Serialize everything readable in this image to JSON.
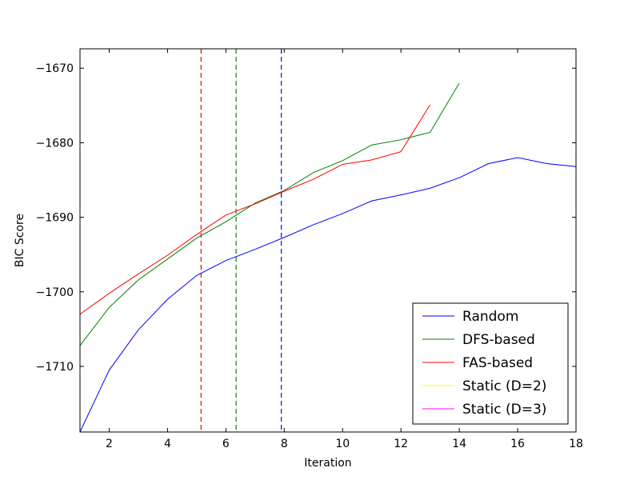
{
  "chart_data": {
    "type": "line",
    "title": "",
    "xlabel": "Iteration",
    "ylabel": "BIC Score",
    "xlim": [
      1,
      18
    ],
    "ylim": [
      -1718.8,
      -1667.4
    ],
    "xticks": [
      2,
      4,
      6,
      8,
      10,
      12,
      14,
      16,
      18
    ],
    "yticks": [
      -1670,
      -1680,
      -1690,
      -1700,
      -1710
    ],
    "grid": false,
    "legend_position": "bottom-right",
    "series": [
      {
        "name": "Random",
        "color": "#0000ff",
        "x": [
          1,
          2,
          3,
          4,
          5,
          6,
          7,
          8,
          9,
          10,
          11,
          12,
          13,
          14,
          15,
          16,
          17,
          18
        ],
        "y": [
          -1718.8,
          -1710.5,
          -1705.1,
          -1701.0,
          -1697.8,
          -1695.8,
          -1694.3,
          -1692.7,
          -1691.0,
          -1689.5,
          -1687.8,
          -1687.0,
          -1686.1,
          -1684.7,
          -1682.8,
          -1682.0,
          -1682.8,
          -1683.2
        ]
      },
      {
        "name": "DFS-based",
        "color": "#008000",
        "x": [
          1,
          2,
          3,
          4,
          5,
          6,
          7,
          8,
          9,
          10,
          11,
          12,
          13,
          14
        ],
        "y": [
          -1707.2,
          -1702.1,
          -1698.4,
          -1695.6,
          -1692.8,
          -1690.6,
          -1688.1,
          -1686.4,
          -1684.0,
          -1682.4,
          -1680.3,
          -1679.6,
          -1678.6,
          -1672.0
        ]
      },
      {
        "name": "FAS-based",
        "color": "#ff0000",
        "x": [
          1,
          2,
          3,
          4,
          5,
          6,
          7,
          8,
          9,
          10,
          11,
          12,
          13
        ],
        "y": [
          -1703.0,
          -1700.2,
          -1697.6,
          -1695.1,
          -1692.3,
          -1689.7,
          -1688.2,
          -1686.5,
          -1684.9,
          -1682.9,
          -1682.3,
          -1681.2,
          -1674.9
        ]
      },
      {
        "name": "Static (D=2)",
        "color": "#ffff00",
        "x": [
          1,
          18
        ],
        "y": [
          -1667.4,
          -1667.4
        ]
      },
      {
        "name": "Static (D=3)",
        "color": "#ff00ff",
        "x": [
          1,
          18
        ],
        "y": [
          -1667.4,
          -1667.4
        ]
      }
    ],
    "vlines": [
      {
        "x": 5.15,
        "color": "#ff0000",
        "style": "dashed"
      },
      {
        "x": 6.35,
        "color": "#008000",
        "style": "dashed"
      },
      {
        "x": 7.9,
        "color": "#0000ff",
        "style": "dashed"
      }
    ]
  }
}
